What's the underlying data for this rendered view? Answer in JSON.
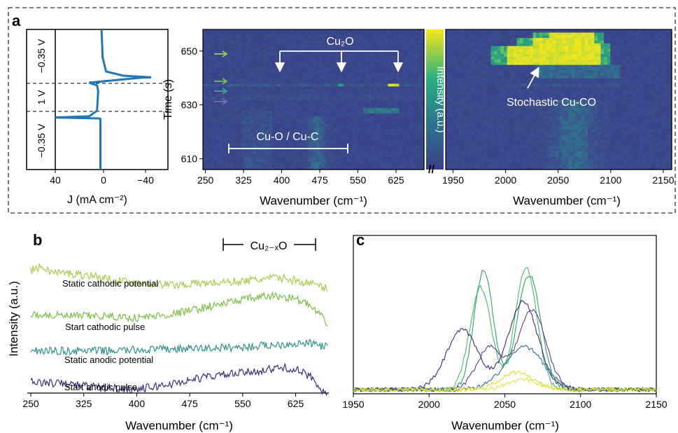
{
  "panel_labels": {
    "a": "a",
    "b": "b",
    "c": "c"
  },
  "colors": {
    "electro_curve": "#1f78b4",
    "heat_low": "#3b3f86",
    "heat_high": "#f5e61b",
    "arrow_green": "#9ccc5b",
    "arrow_teal": "#38a68f",
    "arrow_purple": "#7c6bb3",
    "series_b": [
      "#a6cc4a",
      "#7bbf4a",
      "#2f8f8a",
      "#3a2f7a"
    ],
    "series_c": [
      "#2f9e6b",
      "#4cb86f",
      "#3b2b75",
      "#5a3f8a",
      "#2a6e8c",
      "#d9e021",
      "#e6e44a"
    ]
  },
  "chart_data": [
    {
      "type": "line",
      "panel": "a-left",
      "xlabel": "J (mA cm⁻²)",
      "xticks": [
        "40",
        "0",
        "−40"
      ],
      "xlim": [
        55,
        -55
      ],
      "segment_labels": [
        "−0.35 V",
        "1 V",
        "−0.35 V"
      ],
      "dashed_levels": [
        0.37,
        0.66
      ],
      "points": [
        [
          0,
          0.0
        ],
        [
          0,
          0.36
        ],
        [
          1,
          0.365
        ],
        [
          32,
          0.37
        ],
        [
          40,
          0.372
        ],
        [
          10,
          0.38
        ],
        [
          3,
          0.42
        ],
        [
          2,
          0.56
        ],
        [
          3,
          0.6
        ],
        [
          10,
          0.62
        ],
        [
          -35,
          0.655
        ],
        [
          -45,
          0.658
        ],
        [
          -20,
          0.67
        ],
        [
          -5,
          0.7
        ],
        [
          -2,
          0.8
        ],
        [
          -1,
          1.0
        ]
      ]
    },
    {
      "type": "heatmap",
      "panel": "a-middle",
      "xlabel": "Wavenumber (cm⁻¹)",
      "ylabel": "Time (s)",
      "xticks": [
        "250",
        "325",
        "400",
        "475",
        "550",
        "625"
      ],
      "xtick_values": [
        250,
        325,
        400,
        475,
        550,
        625
      ],
      "xlim": [
        245,
        680
      ],
      "yticks": [
        "610",
        "630",
        "650"
      ],
      "ytick_values": [
        610,
        630,
        650
      ],
      "ylim": [
        606,
        658
      ],
      "annotations": [
        "Cu₂O",
        "Cu-O / Cu-C"
      ],
      "cu2o_peaks": [
        395,
        515,
        620
      ],
      "cuo_range": [
        283,
        527
      ]
    },
    {
      "type": "heatmap",
      "panel": "a-right",
      "xlabel": "Wavenumber (cm⁻¹)",
      "xticks": [
        "1950",
        "2000",
        "2050",
        "2100",
        "2150"
      ],
      "xtick_values": [
        1950,
        2000,
        2050,
        2100,
        2150
      ],
      "xlim": [
        1943,
        2158
      ],
      "ylim": [
        606,
        658
      ],
      "annotations": [
        "Stochastic Cu-CO"
      ]
    },
    {
      "type": "colorbar",
      "label": "Intensity (a.u.)"
    },
    {
      "type": "line",
      "panel": "b",
      "xlabel": "Wavenumber (cm⁻¹)",
      "ylabel": "Intensity (a.u.)",
      "xticks": [
        "250",
        "325",
        "400",
        "475",
        "550",
        "625"
      ],
      "xtick_values": [
        250,
        325,
        400,
        475,
        550,
        625
      ],
      "xlim": [
        245,
        672
      ],
      "bracket_label": "Cu₂₋ₓO",
      "bracket_range": [
        530,
        668
      ],
      "series": [
        {
          "name": "Static cathodic potential",
          "offset": 3.05,
          "values": [
            [
              250,
              0.3
            ],
            [
              265,
              0.4
            ],
            [
              280,
              0.25
            ],
            [
              310,
              0.2
            ],
            [
              340,
              0.15
            ],
            [
              360,
              0.05
            ],
            [
              400,
              -0.05
            ],
            [
              450,
              -0.1
            ],
            [
              500,
              -0.05
            ],
            [
              550,
              0.0
            ],
            [
              600,
              0.1
            ],
            [
              630,
              0.0
            ],
            [
              655,
              -0.1
            ],
            [
              670,
              -0.2
            ]
          ]
        },
        {
          "name": "Start cathodic pulse",
          "offset": 2.1,
          "values": [
            [
              250,
              0.05
            ],
            [
              300,
              0.0
            ],
            [
              350,
              0.0
            ],
            [
              400,
              -0.05
            ],
            [
              450,
              0.05
            ],
            [
              500,
              0.25
            ],
            [
              550,
              0.45
            ],
            [
              590,
              0.55
            ],
            [
              620,
              0.5
            ],
            [
              640,
              0.35
            ],
            [
              655,
              0.1
            ],
            [
              670,
              -0.2
            ]
          ]
        },
        {
          "name": "Static anodic potential",
          "offset": 1.15,
          "values": [
            [
              250,
              0.0
            ],
            [
              350,
              0.0
            ],
            [
              450,
              0.05
            ],
            [
              550,
              0.1
            ],
            [
              620,
              0.2
            ],
            [
              650,
              0.2
            ],
            [
              670,
              0.1
            ]
          ]
        },
        {
          "name": "Start anodic pulse",
          "offset": 0.15,
          "values": [
            [
              250,
              0.15
            ],
            [
              300,
              0.1
            ],
            [
              350,
              0.0
            ],
            [
              400,
              -0.05
            ],
            [
              450,
              0.1
            ],
            [
              500,
              0.3
            ],
            [
              550,
              0.4
            ],
            [
              590,
              0.5
            ],
            [
              610,
              0.55
            ],
            [
              630,
              0.45
            ],
            [
              650,
              0.25
            ],
            [
              660,
              0.0
            ],
            [
              670,
              -0.25
            ]
          ]
        }
      ]
    },
    {
      "type": "line",
      "panel": "c",
      "xlabel": "Wavenumber (cm⁻¹)",
      "xticks": [
        "1950",
        "2000",
        "2050",
        "2100",
        "2150"
      ],
      "xtick_values": [
        1950,
        2000,
        2050,
        2100,
        2150
      ],
      "xlim": [
        1950,
        2150
      ],
      "ylim": [
        0,
        1
      ],
      "series": [
        {
          "peaks": [
            [
              2036,
              0.84,
              9
            ],
            [
              2066,
              0.81,
              11
            ]
          ]
        },
        {
          "peaks": [
            [
              2034,
              0.72,
              10
            ],
            [
              2064,
              0.86,
              10
            ]
          ]
        },
        {
          "peaks": [
            [
              2022,
              0.42,
              15
            ],
            [
              2062,
              0.62,
              14
            ]
          ]
        },
        {
          "peaks": [
            [
              2040,
              0.3,
              12
            ],
            [
              2068,
              0.56,
              13
            ]
          ]
        },
        {
          "peaks": [
            [
              2063,
              0.3,
              18
            ]
          ]
        },
        {
          "peaks": [
            [
              2058,
              0.12,
              15
            ]
          ]
        },
        {
          "peaks": [
            [
              2062,
              0.07,
              14
            ]
          ]
        }
      ]
    }
  ]
}
